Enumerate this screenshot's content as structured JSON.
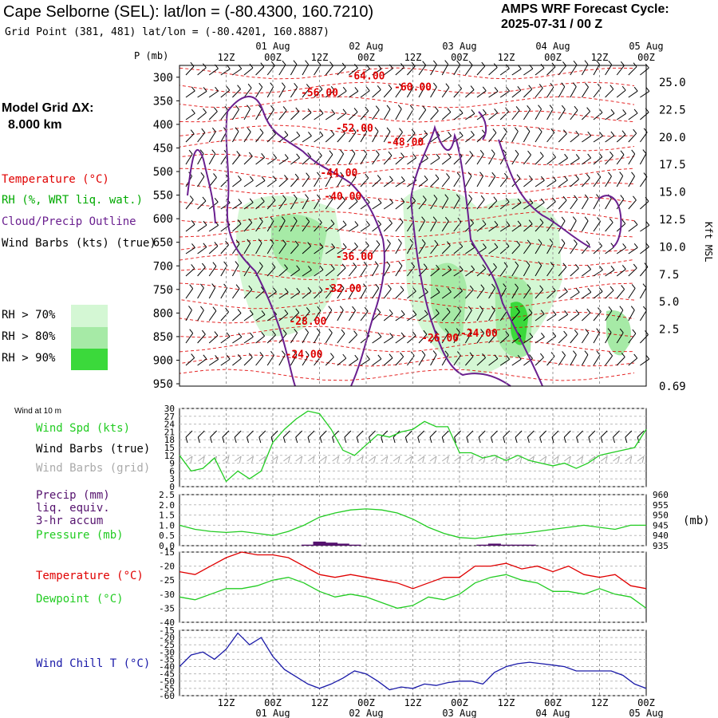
{
  "header": {
    "station_title": "Cape Selborne (SEL):  lat/lon = (-80.4300, 160.7210)",
    "grid_point": "Grid Point (381, 481) lat/lon = (-80.4201, 160.8887)",
    "cycle_line1": "AMPS WRF Forecast Cycle:",
    "cycle_line2": "2025-07-31 / 00  Z"
  },
  "legend": {
    "model_grid_label": "Model Grid ΔX:",
    "model_grid_value": "8.000 km",
    "temperature": "Temperature (°C)",
    "rh": "RH (%, WRT liq. wat.)",
    "cloud": "Cloud/Precip Outline",
    "wind_barbs": "Wind Barbs (kts) (true)",
    "rh70": "RH > 70%",
    "rh80": "RH > 80%",
    "rh90": "RH > 90%",
    "wind_at_10m": "Wind at 10 m",
    "wind_spd": "Wind Spd (kts)",
    "wind_barbs_true": "Wind Barbs (true)",
    "wind_barbs_grid": "Wind Barbs (grid)",
    "precip1": "Precip (mm)",
    "precip2": "liq. equiv.",
    "precip3": "3-hr accum",
    "pressure": "Pressure (mb)",
    "pressure_unit": "(mb)",
    "temp2": "Temperature (°C)",
    "dewpoint": "Dewpoint (°C)",
    "windchill": "Wind Chill T (°C)"
  },
  "colors": {
    "temperature": "#e00000",
    "rh_label": "#00aa00",
    "cloud": "#6a1f8f",
    "wind": "#000000",
    "wind_grid": "#aaaaaa",
    "rh70": "#d4f7d4",
    "rh80": "#a6eaa6",
    "rh90": "#3bd93b",
    "series_green": "#22cc22",
    "precip": "#55126e",
    "windchill": "#1a1aa8",
    "grid": "#999999"
  },
  "chart_data": {
    "time_axis": {
      "hours": [
        -12,
        0,
        12,
        24,
        36,
        48,
        60,
        72,
        84,
        96,
        108,
        120
      ],
      "top_labels": [
        "12Z",
        "00Z",
        "12Z",
        "00Z",
        "12Z",
        "00Z",
        "12Z",
        "00Z",
        "12Z",
        "00Z"
      ],
      "top_label_hours": [
        12,
        24,
        36,
        48,
        60,
        72,
        84,
        96,
        108,
        120
      ],
      "date_labels": [
        "01 Aug",
        "02 Aug",
        "03 Aug",
        "04 Aug",
        "05 Aug"
      ],
      "date_label_hours": [
        24,
        48,
        72,
        96,
        120
      ],
      "start_hour": 0,
      "end_hour": 120
    },
    "cross_section": {
      "type": "heatmap",
      "ylabel_left": "P (mb)",
      "ylabel_right": "Kft MSL",
      "pressure_ticks": [
        300,
        350,
        400,
        450,
        500,
        550,
        600,
        650,
        700,
        750,
        800,
        850,
        900,
        950
      ],
      "height_ticks": [
        "25.0",
        "22.5",
        "20.0",
        "17.5",
        "15.0",
        "12.5",
        "10.0",
        "7.5",
        "5.0",
        "2.5",
        "0.69"
      ],
      "temperature_labels": [
        {
          "text": "-64.00",
          "hour": 48,
          "p": 305
        },
        {
          "text": "-60.00",
          "hour": 60,
          "p": 328
        },
        {
          "text": "-56.00",
          "hour": 36,
          "p": 340
        },
        {
          "text": "-52.00",
          "hour": 45,
          "p": 415
        },
        {
          "text": "-48.00",
          "hour": 58,
          "p": 445
        },
        {
          "text": "-44.00",
          "hour": 41,
          "p": 510
        },
        {
          "text": "-40.00",
          "hour": 42,
          "p": 560
        },
        {
          "text": "-36.00",
          "hour": 45,
          "p": 688
        },
        {
          "text": "-32.00",
          "hour": 42,
          "p": 755
        },
        {
          "text": "-28.00",
          "hour": 33,
          "p": 825
        },
        {
          "text": "-26.00",
          "hour": 67,
          "p": 860
        },
        {
          "text": "-24.00",
          "hour": 77,
          "p": 850
        },
        {
          "text": "-24.00",
          "hour": 32,
          "p": 895
        }
      ]
    },
    "wind_speed": {
      "type": "line",
      "name": "Wind Spd (kts)",
      "y_ticks": [
        0,
        3,
        6,
        9,
        12,
        15,
        18,
        21,
        24,
        27,
        30
      ],
      "ylim": [
        0,
        30
      ],
      "x": [
        0,
        3,
        6,
        9,
        12,
        15,
        18,
        21,
        24,
        27,
        30,
        33,
        36,
        39,
        42,
        45,
        48,
        51,
        54,
        57,
        60,
        63,
        66,
        69,
        72,
        75,
        78,
        81,
        84,
        87,
        90,
        93,
        96,
        99,
        102,
        105,
        108,
        111,
        114,
        117,
        120
      ],
      "values": [
        12,
        6,
        7,
        11,
        2,
        6,
        3,
        6,
        17,
        22,
        26,
        29,
        28,
        22,
        14,
        12,
        16,
        20,
        19,
        21,
        22,
        25,
        23,
        23,
        13,
        13,
        11,
        12,
        10,
        12,
        10,
        9,
        8,
        9,
        7,
        9,
        12,
        13,
        14,
        15,
        22
      ]
    },
    "pressure": {
      "type": "line",
      "name": "Pressure (mb)",
      "y_ticks": [
        935,
        940,
        945,
        950,
        955,
        960
      ],
      "ylim": [
        935,
        960
      ],
      "x": [
        0,
        4,
        8,
        12,
        16,
        20,
        24,
        28,
        32,
        36,
        40,
        44,
        48,
        52,
        56,
        60,
        64,
        68,
        72,
        76,
        80,
        84,
        88,
        92,
        96,
        100,
        104,
        108,
        112,
        116,
        120
      ],
      "values": [
        945,
        943,
        942,
        941.5,
        942,
        941,
        940,
        942,
        945,
        949,
        951,
        952.5,
        953,
        952.5,
        951,
        948,
        944,
        941,
        939,
        938.5,
        939.5,
        940.5,
        941,
        942,
        943,
        944,
        945,
        944,
        943,
        945,
        945
      ]
    },
    "precip": {
      "type": "bar",
      "name": "Precip (mm)",
      "y_ticks": [
        0.0,
        0.5,
        1.0,
        1.5,
        2.0,
        2.5
      ],
      "ylim": [
        0,
        2.5
      ],
      "x": [
        33,
        36,
        39,
        42,
        45,
        78,
        81,
        84,
        87,
        90
      ],
      "values": [
        0.05,
        0.2,
        0.15,
        0.1,
        0.05,
        0.05,
        0.1,
        0.05,
        0.05,
        0.05
      ]
    },
    "temp_dew": {
      "type": "line",
      "y_ticks": [
        -40,
        -35,
        -30,
        -25,
        -20,
        -15
      ],
      "ylim": [
        -40,
        -15
      ],
      "x": [
        0,
        4,
        8,
        12,
        16,
        20,
        24,
        28,
        32,
        36,
        40,
        44,
        48,
        52,
        56,
        60,
        64,
        68,
        72,
        76,
        80,
        84,
        88,
        92,
        96,
        100,
        104,
        108,
        112,
        116,
        120
      ],
      "series": [
        {
          "name": "Temperature (°C)",
          "values": [
            -22,
            -23,
            -20,
            -17,
            -15,
            -16,
            -16,
            -17,
            -20,
            -23,
            -24,
            -23,
            -24,
            -25,
            -26,
            -28,
            -26,
            -24,
            -24,
            -20,
            -20,
            -19,
            -21,
            -20,
            -22,
            -20,
            -23,
            -24,
            -23,
            -27,
            -28
          ]
        },
        {
          "name": "Dewpoint (°C)",
          "values": [
            -31,
            -32,
            -30,
            -28,
            -28,
            -27,
            -25,
            -24,
            -26,
            -29,
            -31,
            -30,
            -31,
            -33,
            -35,
            -34,
            -31,
            -32,
            -30,
            -26,
            -24,
            -23,
            -25,
            -26,
            -29,
            -29,
            -30,
            -28,
            -30,
            -31,
            -35
          ]
        }
      ]
    },
    "windchill": {
      "type": "line",
      "name": "Wind Chill T (°C)",
      "y_ticks": [
        -60,
        -55,
        -50,
        -45,
        -40,
        -35,
        -30,
        -25,
        -20,
        -15
      ],
      "ylim": [
        -60,
        -15
      ],
      "x": [
        0,
        3,
        6,
        9,
        12,
        15,
        18,
        21,
        24,
        27,
        30,
        33,
        36,
        39,
        42,
        45,
        48,
        51,
        54,
        57,
        60,
        63,
        66,
        69,
        72,
        75,
        78,
        81,
        84,
        87,
        90,
        93,
        96,
        99,
        102,
        105,
        108,
        111,
        114,
        117,
        120
      ],
      "values": [
        -40,
        -32,
        -30,
        -35,
        -28,
        -17,
        -25,
        -20,
        -33,
        -42,
        -47,
        -52,
        -55,
        -52,
        -48,
        -43,
        -45,
        -50,
        -56,
        -54,
        -55,
        -52,
        -53,
        -51,
        -50,
        -50,
        -52,
        -44,
        -40,
        -38,
        -37,
        -38,
        -39,
        -40,
        -43,
        -43,
        -43,
        -43,
        -46,
        -52,
        -55
      ]
    }
  }
}
